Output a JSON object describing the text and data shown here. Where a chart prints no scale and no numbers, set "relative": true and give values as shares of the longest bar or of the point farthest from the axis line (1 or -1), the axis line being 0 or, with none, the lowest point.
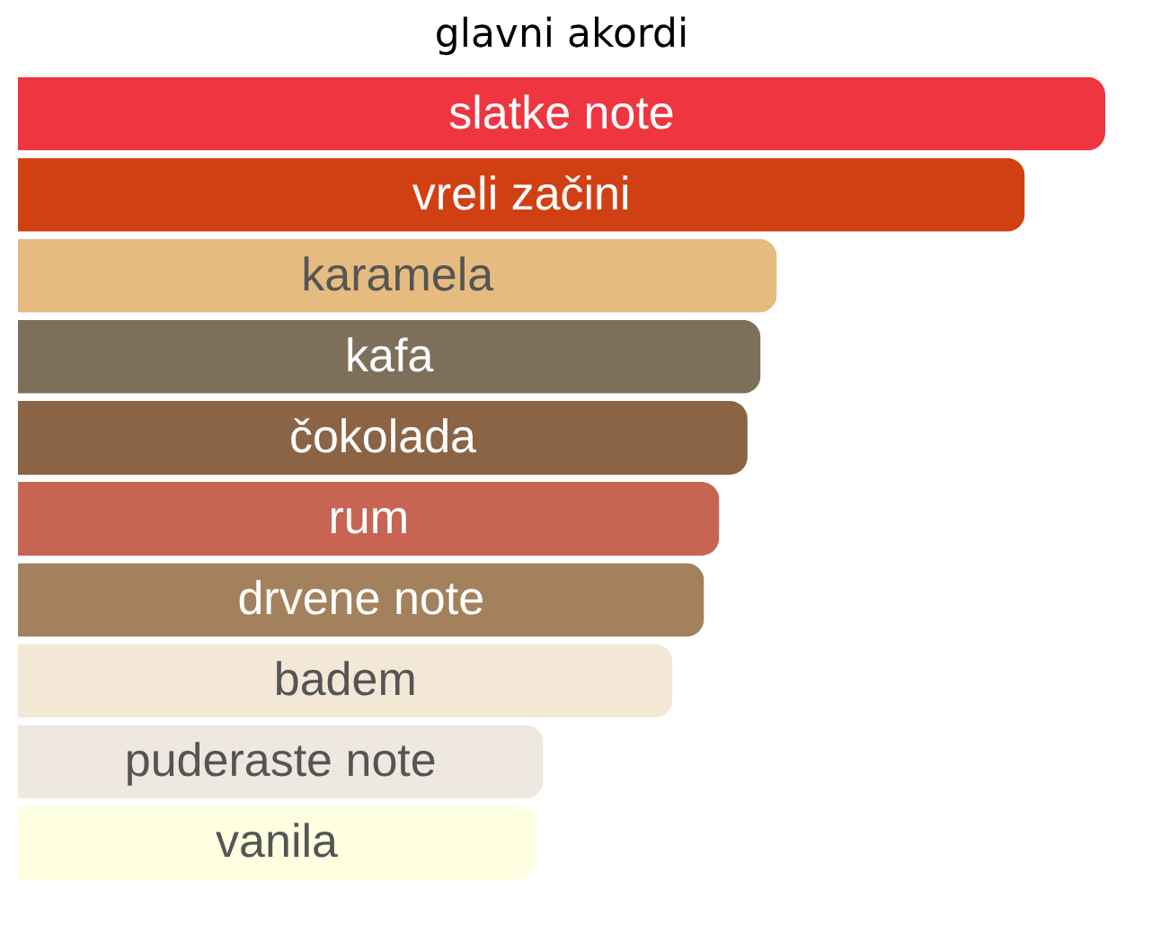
{
  "chart_data": {
    "type": "bar",
    "orientation": "horizontal",
    "relative": true,
    "title": "glavni akordi",
    "categories": [
      "slatke note",
      "vreli začini",
      "karamela",
      "kafa",
      "čokolada",
      "rum",
      "drvene note",
      "badem",
      "puderaste note",
      "vanila"
    ],
    "values": [
      1,
      0.926,
      0.698,
      0.683,
      0.671,
      0.645,
      0.631,
      0.602,
      0.483,
      0.476
    ],
    "colors": [
      "#ee3540",
      "#d14012",
      "#e6bb80",
      "#7e6f5b",
      "#8a6445",
      "#c86452",
      "#a3815d",
      "#f3e7d5",
      "#efe8e0",
      "#fefee0"
    ]
  }
}
